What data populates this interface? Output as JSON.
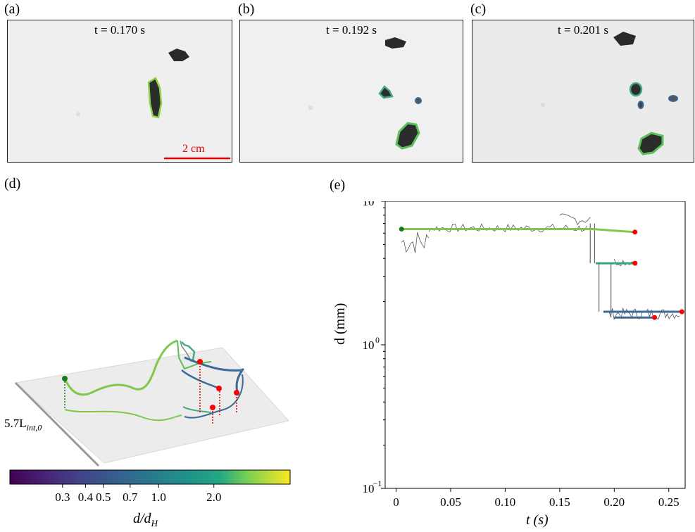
{
  "panels": {
    "a": {
      "label": "(a)",
      "time": "t = 0.170 s",
      "scale_bar": "2 cm"
    },
    "b": {
      "label": "(b)",
      "time": "t = 0.192 s"
    },
    "c": {
      "label": "(c)",
      "time": "t = 0.201 s"
    },
    "d": {
      "label": "(d)",
      "length_label": "5.7L",
      "length_sub": "int,0"
    },
    "e": {
      "label": "(e)"
    }
  },
  "colorbar": {
    "label": "d/d",
    "label_sub": "H",
    "ticks": [
      "0.3",
      "0.4",
      "0.5",
      "0.7",
      "1.0",
      "2.0"
    ],
    "colormap": "viridis"
  },
  "colors": {
    "dark_blue": "#3b6a96",
    "teal": "#2e9e82",
    "green": "#5cc05a",
    "light_green": "#9fd040",
    "start_marker": "#1a7a1a",
    "end_marker": "#ff0000",
    "scale_bar": "#e00000"
  },
  "chart_data": {
    "type": "line",
    "xlabel": "t (s)",
    "ylabel": "d (mm)",
    "yscale": "log",
    "xlim": [
      -0.01,
      0.265
    ],
    "ylim": [
      0.1,
      10
    ],
    "xticks": [
      0,
      0.05,
      0.1,
      0.15,
      0.2,
      0.25
    ],
    "xtick_labels": [
      "0",
      "0.05",
      "0.10",
      "0.15",
      "0.20",
      "0.25"
    ],
    "ytick_labels": [
      "10",
      "10",
      "10"
    ],
    "ytick_exponents": [
      "1",
      "0",
      "−1"
    ],
    "grid": false,
    "series": [
      {
        "x": [
          0.005,
          0.18,
          0.219
        ],
        "y": [
          6.4,
          6.4,
          6.1
        ],
        "color": "#7fc84a"
      },
      {
        "x": [
          0.183,
          0.219
        ],
        "y": [
          3.7,
          3.7
        ],
        "color": "#3aa57c"
      },
      {
        "x": [
          0.19,
          0.262
        ],
        "y": [
          1.7,
          1.7
        ],
        "color": "#3b6a96"
      },
      {
        "x": [
          0.2,
          0.237
        ],
        "y": [
          1.55,
          1.55
        ],
        "color": "#3b6a96"
      }
    ],
    "start_points": [
      {
        "x": 0.005,
        "y": 6.4
      }
    ],
    "end_points": [
      {
        "x": 0.219,
        "y": 6.1
      },
      {
        "x": 0.219,
        "y": 3.7
      },
      {
        "x": 0.262,
        "y": 1.7
      },
      {
        "x": 0.237,
        "y": 1.55
      }
    ]
  }
}
